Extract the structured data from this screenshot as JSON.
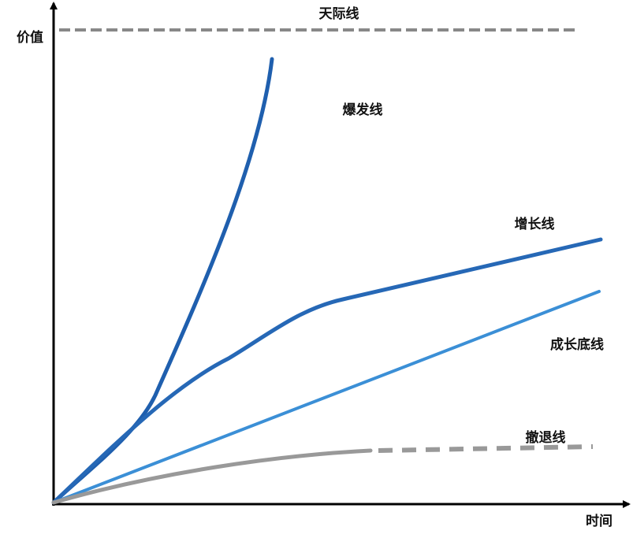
{
  "axes": {
    "y_label": "价值",
    "x_label": "时间"
  },
  "lines": [
    {
      "label": "天际线"
    },
    {
      "label": "爆发线"
    },
    {
      "label": "增长线"
    },
    {
      "label": "成长底线"
    },
    {
      "label": "撤退线"
    }
  ]
}
